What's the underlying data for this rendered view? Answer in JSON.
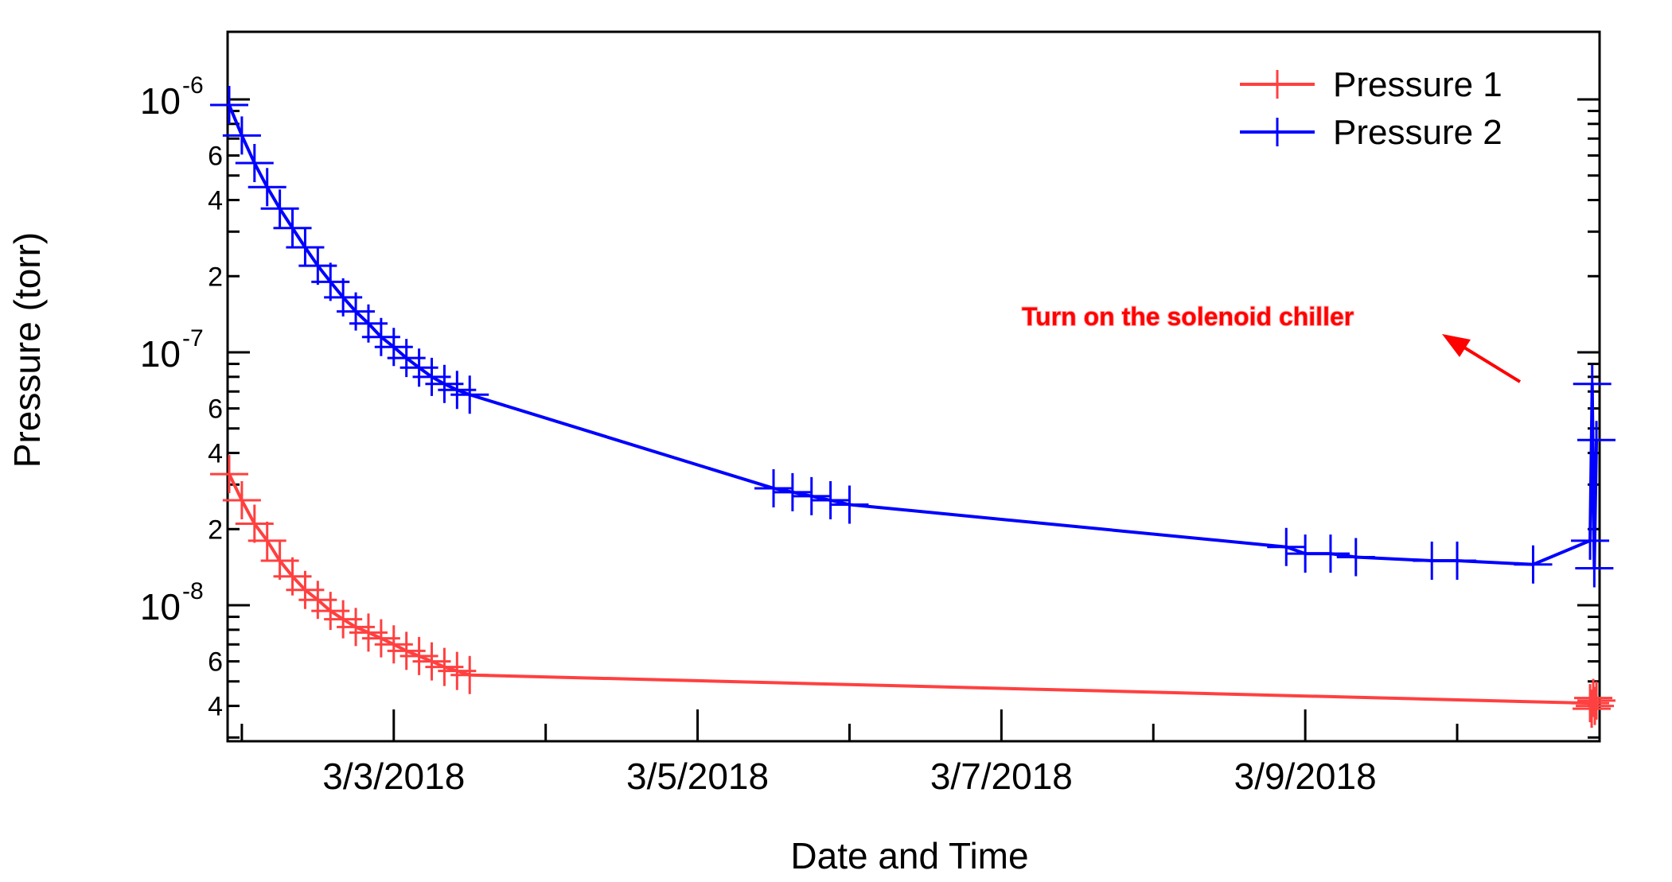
{
  "chart_data": {
    "type": "line",
    "xlabel": "Date and Time",
    "ylabel": "Pressure (torr)",
    "y_scale": "log",
    "ylim": [
      2.9e-09,
      1.85e-06
    ],
    "xlim": [
      "2018-03-01T21:45",
      "2018-03-10T22:30"
    ],
    "x_tick_labels": [
      "3/3/2018",
      "3/5/2018",
      "3/7/2018",
      "3/9/2018"
    ],
    "x_tick_values": [
      "2018-03-03T00:00",
      "2018-03-05T00:00",
      "2018-03-07T00:00",
      "2018-03-09T00:00"
    ],
    "y_major_ticks": [
      {
        "value": 1e-06,
        "mantissa": "10",
        "exponent": "-6"
      },
      {
        "value": 1e-07,
        "mantissa": "10",
        "exponent": "-7"
      },
      {
        "value": 1e-08,
        "mantissa": "10",
        "exponent": "-8"
      }
    ],
    "y_minor_labels": [
      {
        "value": 6e-07,
        "label": "6"
      },
      {
        "value": 4e-07,
        "label": "4"
      },
      {
        "value": 2e-07,
        "label": "2"
      },
      {
        "value": 6e-08,
        "label": "6"
      },
      {
        "value": 4e-08,
        "label": "4"
      },
      {
        "value": 2e-08,
        "label": "2"
      },
      {
        "value": 6e-09,
        "label": "6"
      },
      {
        "value": 4e-09,
        "label": "4"
      }
    ],
    "legend": {
      "placement": "top-right"
    },
    "series": [
      {
        "name": "Pressure 1",
        "color": "#ff4040",
        "marker": "plus",
        "x": [
          "2018-03-01T22:00",
          "2018-03-02T00:00",
          "2018-03-02T02:00",
          "2018-03-02T04:00",
          "2018-03-02T06:00",
          "2018-03-02T08:00",
          "2018-03-02T10:00",
          "2018-03-02T12:00",
          "2018-03-02T14:00",
          "2018-03-02T16:00",
          "2018-03-02T18:00",
          "2018-03-02T20:00",
          "2018-03-02T22:00",
          "2018-03-03T00:00",
          "2018-03-03T02:00",
          "2018-03-03T04:00",
          "2018-03-03T06:00",
          "2018-03-03T08:00",
          "2018-03-03T10:00",
          "2018-03-03T12:00",
          "2018-03-10T21:00",
          "2018-03-10T21:15",
          "2018-03-10T21:30",
          "2018-03-10T21:45",
          "2018-03-10T22:00"
        ],
        "y": [
          3.3e-08,
          2.6e-08,
          2.1e-08,
          1.8e-08,
          1.5e-08,
          1.3e-08,
          1.15e-08,
          1.05e-08,
          9.5e-09,
          8.8e-09,
          8.2e-09,
          7.8e-09,
          7.4e-09,
          7e-09,
          6.6e-09,
          6.3e-09,
          6e-09,
          5.7e-09,
          5.5e-09,
          5.3e-09,
          4.1e-09,
          3.9e-09,
          4.3e-09,
          4e-09,
          4.2e-09
        ]
      },
      {
        "name": "Pressure 2",
        "color": "#0000ff",
        "marker": "plus",
        "x": [
          "2018-03-01T22:00",
          "2018-03-02T00:00",
          "2018-03-02T02:00",
          "2018-03-02T04:00",
          "2018-03-02T06:00",
          "2018-03-02T08:00",
          "2018-03-02T10:00",
          "2018-03-02T12:00",
          "2018-03-02T14:00",
          "2018-03-02T16:00",
          "2018-03-02T18:00",
          "2018-03-02T20:00",
          "2018-03-02T22:00",
          "2018-03-03T00:00",
          "2018-03-03T02:00",
          "2018-03-03T04:00",
          "2018-03-03T06:00",
          "2018-03-03T08:00",
          "2018-03-03T10:00",
          "2018-03-03T12:00",
          "2018-03-05T12:00",
          "2018-03-05T15:00",
          "2018-03-05T18:00",
          "2018-03-05T21:00",
          "2018-03-06T00:00",
          "2018-03-08T21:00",
          "2018-03-09T00:00",
          "2018-03-09T04:00",
          "2018-03-09T08:00",
          "2018-03-09T20:00",
          "2018-03-10T00:00",
          "2018-03-10T12:00",
          "2018-03-10T21:00",
          "2018-03-10T21:20",
          "2018-03-10T21:40",
          "2018-03-10T22:00"
        ],
        "y": [
          9.5e-07,
          7.2e-07,
          5.6e-07,
          4.5e-07,
          3.7e-07,
          3.1e-07,
          2.6e-07,
          2.2e-07,
          1.9e-07,
          1.65e-07,
          1.45e-07,
          1.3e-07,
          1.15e-07,
          1.05e-07,
          9.5e-08,
          8.7e-08,
          8e-08,
          7.5e-08,
          7.1e-08,
          6.8e-08,
          2.9e-08,
          2.8e-08,
          2.7e-08,
          2.6e-08,
          2.5e-08,
          1.7e-08,
          1.6e-08,
          1.6e-08,
          1.55e-08,
          1.5e-08,
          1.5e-08,
          1.45e-08,
          1.8e-08,
          7.5e-08,
          1.4e-08,
          4.5e-08
        ]
      }
    ],
    "annotation": {
      "text": "Turn on the solenoid chiller",
      "color": "#ff0000",
      "points_to": {
        "x": "2018-03-10T23:00",
        "y": 1.65e-07
      }
    }
  }
}
